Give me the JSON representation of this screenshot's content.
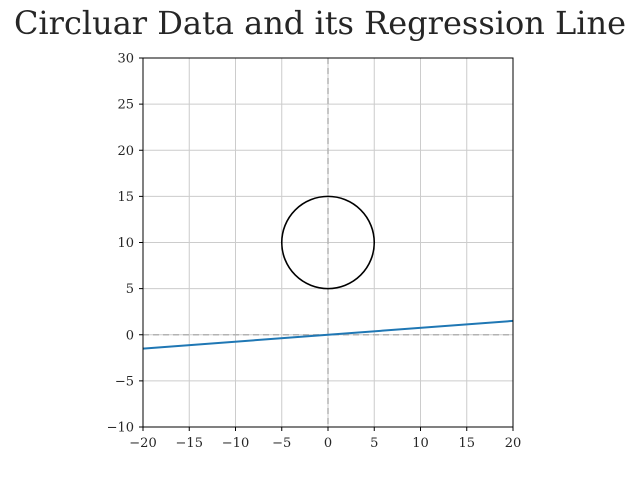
{
  "chart_data": {
    "type": "line",
    "title": "Circluar Data and its Regression Line",
    "xlabel": "",
    "ylabel": "",
    "xlim": [
      -20,
      20
    ],
    "ylim": [
      -10,
      30
    ],
    "xticks": [
      -20,
      -15,
      -10,
      -5,
      0,
      5,
      10,
      15,
      20
    ],
    "yticks": [
      -10,
      -5,
      0,
      5,
      10,
      15,
      20,
      25,
      30
    ],
    "xtick_labels": [
      "−20",
      "−15",
      "−10",
      "−5",
      "0",
      "5",
      "10",
      "15",
      "20"
    ],
    "ytick_labels": [
      "−10",
      "−5",
      "0",
      "5",
      "10",
      "15",
      "20",
      "25",
      "30"
    ],
    "grid": true,
    "reference_lines": {
      "horizontal_y": 0,
      "vertical_x": 0,
      "style": "dashed",
      "color": "#b3b3b3"
    },
    "series": [
      {
        "kind": "circle",
        "center": [
          0,
          10
        ],
        "radius": 5,
        "color": "#000000"
      },
      {
        "kind": "regression-line",
        "x": [
          -20,
          20
        ],
        "y": [
          -1.5,
          1.5
        ],
        "color": "#1f77b4"
      }
    ]
  }
}
